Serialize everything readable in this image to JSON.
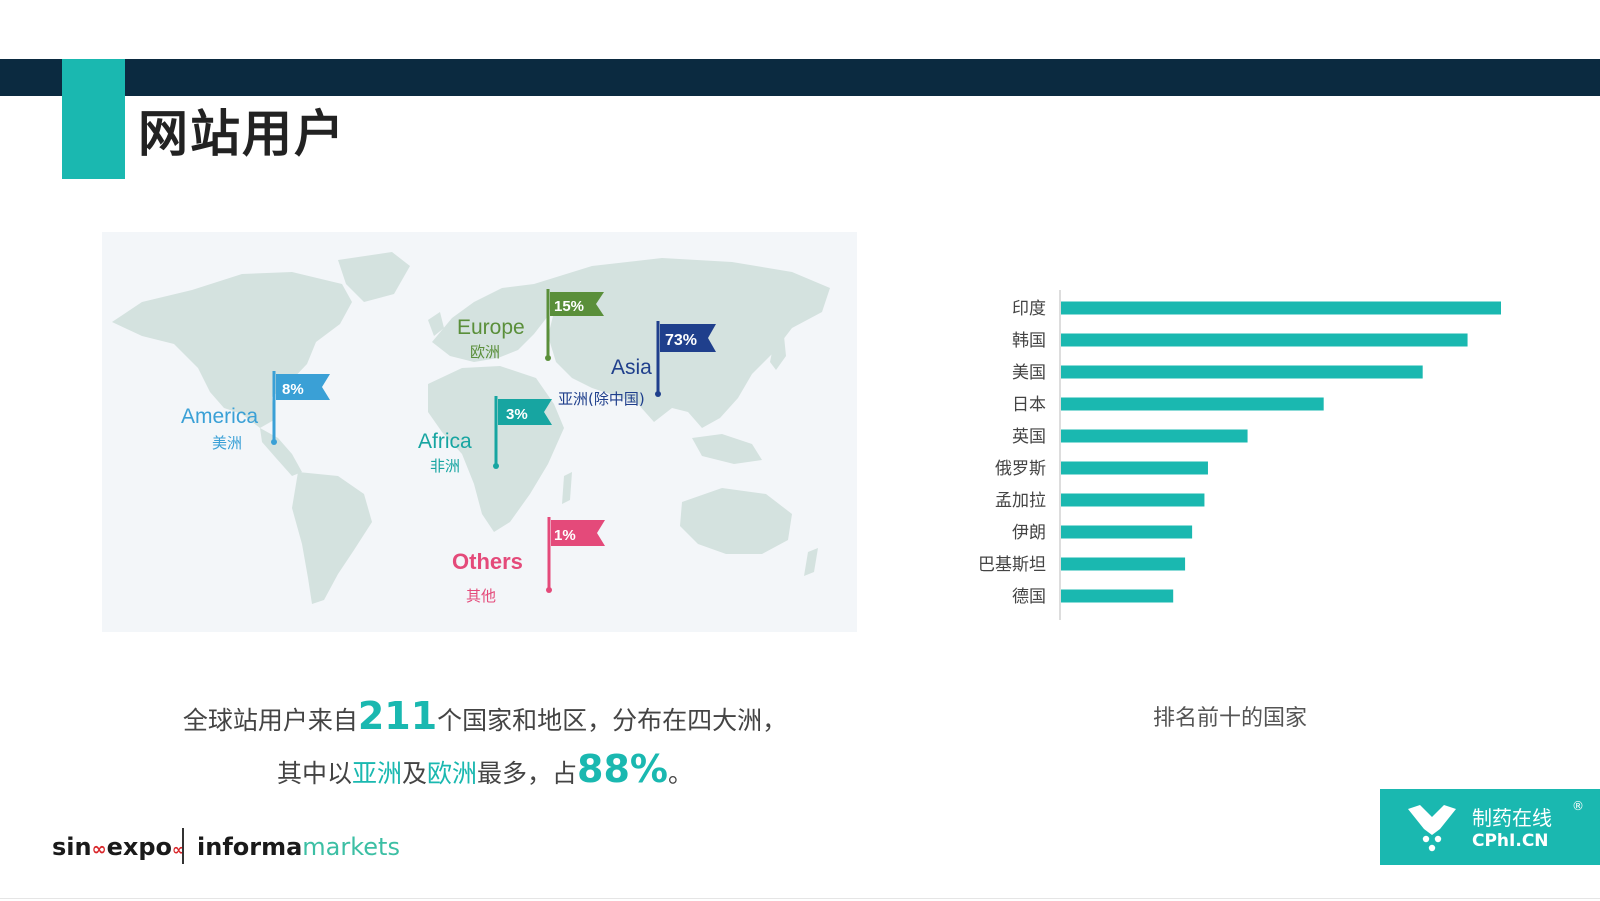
{
  "header": {
    "title": "网站用户"
  },
  "map": {
    "regions": [
      {
        "key": "europe",
        "pct": "15%",
        "en": "Europe",
        "cn": "欧洲",
        "color": "#5a8f3a"
      },
      {
        "key": "asia",
        "pct": "73%",
        "en": "Asia",
        "cn": "亚洲(除中国)",
        "color": "#1f3f8c"
      },
      {
        "key": "america",
        "pct": "8%",
        "en": "America",
        "cn": "美洲",
        "color": "#3aa0d6"
      },
      {
        "key": "africa",
        "pct": "3%",
        "en": "Africa",
        "cn": "非洲",
        "color": "#17a5a1"
      },
      {
        "key": "others",
        "pct": "1%",
        "en": "Others",
        "cn": "其他",
        "color": "#e44a7a"
      }
    ]
  },
  "summary": {
    "p1": "全球站用户来自",
    "count": "211",
    "p2": "个国家和地区，分布在四大洲，其中以",
    "asia": "亚洲",
    "p3": "及",
    "europe": "欧洲",
    "p4": "最多，占",
    "share": "88%",
    "p5": "。"
  },
  "chart_data": {
    "type": "bar",
    "orientation": "horizontal",
    "categories": [
      "印度",
      "韩国",
      "美国",
      "日本",
      "英国",
      "俄罗斯",
      "孟加拉",
      "伊朗",
      "巴基斯坦",
      "德国"
    ],
    "values": [
      100,
      92.4,
      82.2,
      59.7,
      42.4,
      33.4,
      32.6,
      29.8,
      28.2,
      25.5
    ],
    "xlim": [
      0,
      100
    ],
    "grid": false,
    "color": "#1ab8b0",
    "caption": "排名前十的国家"
  },
  "footer": {
    "sino_a": "sin",
    "sino_b": "expo",
    "informa": "informa",
    "markets": "markets",
    "cphi_cn": "制药在线",
    "cphi_en": "CPhI.CN",
    "cphi_reg": "®"
  }
}
